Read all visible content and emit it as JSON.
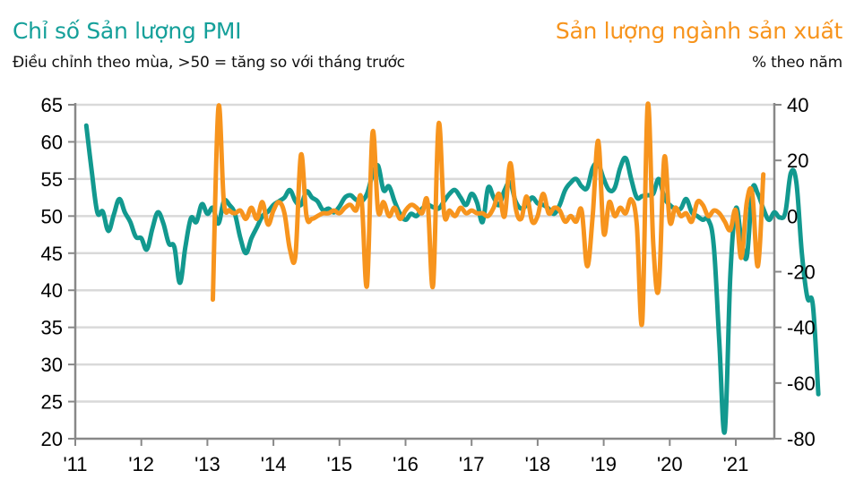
{
  "chart_data": {
    "type": "line",
    "title_left": "Chỉ số Sản lượng PMI",
    "subtitle_left": "Điều chỉnh theo mùa, >50 = tăng so với tháng trước",
    "title_right": "Sản lượng ngành sản xuất",
    "subtitle_right": "% theo năm",
    "x_ticks": [
      "'11",
      "'12",
      "'13",
      "'14",
      "'15",
      "'16",
      "'17",
      "'18",
      "'19",
      "'20",
      "'21"
    ],
    "x_range": [
      "2011-01",
      "2021-08"
    ],
    "y_left": {
      "ticks": [
        65,
        60,
        55,
        50,
        45,
        40,
        35,
        30,
        25,
        20
      ],
      "ylim": [
        20,
        65
      ]
    },
    "y_right": {
      "ticks": [
        40,
        20,
        0,
        -20,
        -40,
        -60,
        -80
      ],
      "ylim": [
        -80,
        40
      ]
    },
    "grid": true,
    "colors": {
      "pmi": "#12998f",
      "output": "#f7941d",
      "axis": "#888888",
      "grid": "#d9d9d9"
    },
    "series": [
      {
        "name": "Chỉ số Sản lượng PMI",
        "axis": "left",
        "start": "2011-03",
        "values": [
          62.2,
          56.0,
          50.5,
          50.6,
          48.0,
          50.2,
          52.3,
          50.5,
          49.2,
          47.2,
          47.0,
          45.5,
          48.3,
          50.5,
          49.0,
          46.3,
          45.8,
          41.0,
          45.8,
          49.7,
          49.2,
          51.6,
          50.3,
          51.1,
          49.0,
          52.0,
          51.5,
          50.3,
          47.0,
          45.0,
          47.0,
          48.5,
          50.0,
          50.6,
          51.5,
          52.0,
          52.5,
          53.5,
          52.0,
          51.5,
          53.3,
          52.5,
          52.0,
          50.8,
          51.0,
          50.5,
          51.3,
          52.5,
          52.8,
          52.2,
          52.0,
          53.0,
          55.5,
          56.8,
          53.5,
          54.0,
          52.0,
          50.3,
          49.5,
          50.3,
          50.0,
          51.0,
          51.5,
          51.2,
          51.0,
          52.0,
          53.0,
          53.5,
          52.5,
          51.5,
          53.0,
          51.8,
          49.2,
          53.8,
          52.5,
          51.5,
          53.5,
          54.5,
          52.0,
          51.0,
          51.5,
          52.5,
          51.7,
          51.5,
          51.0,
          50.3,
          51.5,
          53.5,
          54.5,
          55.0,
          54.0,
          53.8,
          56.5,
          57.0,
          55.0,
          53.5,
          53.8,
          56.5,
          57.8,
          55.0,
          52.5,
          52.7,
          52.8,
          53.0,
          55.0,
          52.5,
          51.5,
          51.0,
          51.0,
          52.3,
          50.5,
          50.0,
          49.5,
          49.5,
          46.0,
          33.0,
          21.0,
          42.0,
          51.0,
          47.0,
          44.5,
          53.5,
          53.0,
          51.0,
          49.5,
          50.5,
          49.8,
          50.5,
          55.8,
          54.5,
          45.0,
          39.0,
          38.0,
          26.0
        ]
      },
      {
        "name": "Sản lượng ngành sản xuất",
        "axis": "right",
        "start": "2013-02",
        "values": [
          -30,
          39,
          5,
          2,
          1,
          2,
          -1,
          3,
          -1,
          5,
          -3,
          2,
          5,
          1,
          -12,
          -14,
          22,
          0,
          -1,
          0,
          1,
          1,
          2,
          1,
          3,
          4,
          2,
          6,
          -25,
          30,
          2,
          5,
          0,
          3,
          -1,
          2,
          4,
          3,
          1,
          5,
          -25,
          33,
          1,
          2,
          0,
          3,
          1,
          2,
          1,
          1,
          0,
          3,
          8,
          0,
          19,
          3,
          -1,
          7,
          -2,
          0,
          8,
          1,
          3,
          2,
          -2,
          0,
          -2,
          2,
          -18,
          0,
          27,
          -6,
          5,
          0,
          3,
          1,
          6,
          -3,
          -38,
          40,
          -10,
          -26,
          21,
          -2,
          3,
          0,
          1,
          -2,
          5,
          4,
          0,
          2,
          1,
          -2,
          -5,
          2,
          -15,
          5,
          8,
          -18,
          15
        ]
      }
    ]
  }
}
